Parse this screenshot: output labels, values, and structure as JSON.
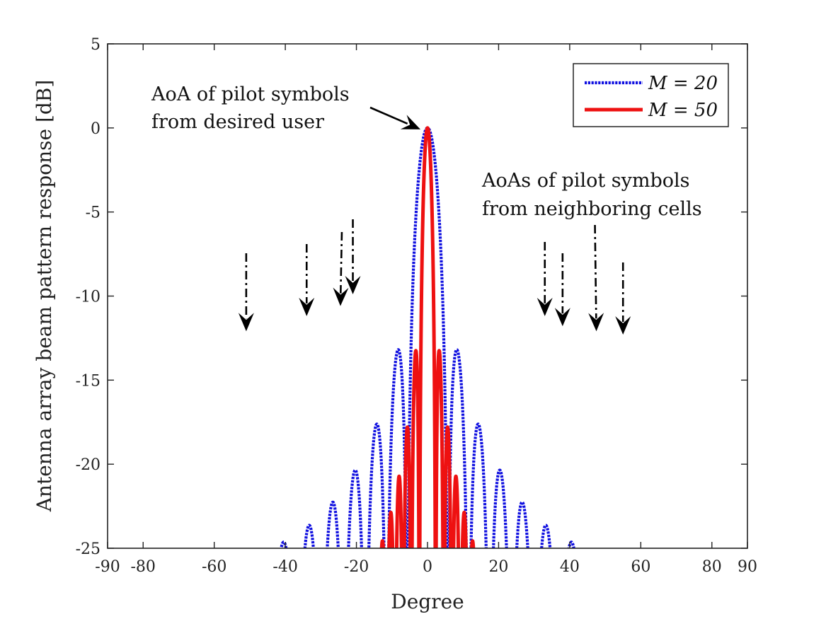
{
  "chart_data": {
    "type": "line",
    "xlabel": "Degree",
    "ylabel": "Antenna array beam pattern response [dB]",
    "xlim": [
      -90,
      90
    ],
    "ylim": [
      -25,
      5
    ],
    "xticks": [
      -90,
      -80,
      -60,
      -40,
      -20,
      0,
      20,
      40,
      60,
      80,
      90
    ],
    "yticks": [
      5,
      0,
      -5,
      -10,
      -15,
      -20,
      -25
    ],
    "grid": false,
    "legend_location": "top-right",
    "series": [
      {
        "name": "M = 20",
        "legend_label": "M = 20",
        "antennas": 20,
        "color": "#1010e0",
        "style": "dotted"
      },
      {
        "name": "M = 50",
        "legend_label": "M = 50",
        "antennas": 50,
        "color": "#ee1111",
        "style": "solid"
      }
    ],
    "annotations": [
      {
        "text_lines": [
          "AoA of pilot symbols",
          "from desired user"
        ],
        "points_to": [
          0,
          0
        ]
      },
      {
        "text_lines": [
          "AoAs of pilot symbols",
          "from neighboring cells"
        ]
      }
    ],
    "arrow_targets": [
      {
        "x": -51,
        "y": -12.6
      },
      {
        "x": -34,
        "y": -11.7
      },
      {
        "x": -24.5,
        "y": -11.1
      },
      {
        "x": -21,
        "y": -10.4
      },
      {
        "x": 33,
        "y": -11.7
      },
      {
        "x": 38,
        "y": -12.3
      },
      {
        "x": 47.5,
        "y": -12.6
      },
      {
        "x": 55,
        "y": -12.8
      }
    ]
  }
}
